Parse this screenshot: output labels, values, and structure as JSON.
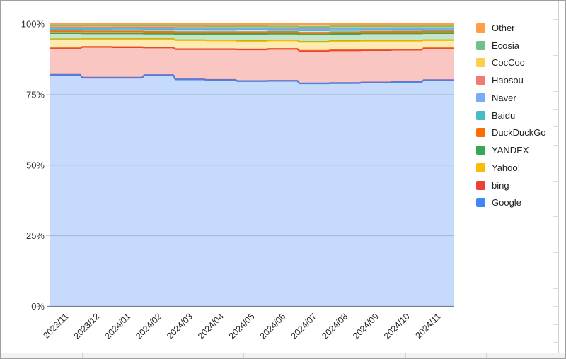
{
  "window": {
    "background_color": "#ffffff",
    "frame_border_color": "#9f9f9f"
  },
  "axes": {
    "y_ticks": [
      {
        "value": 0,
        "label": "0%"
      },
      {
        "value": 25,
        "label": "25%"
      },
      {
        "value": 50,
        "label": "50%"
      },
      {
        "value": 75,
        "label": "75%"
      },
      {
        "value": 100,
        "label": "100%"
      }
    ]
  },
  "chart_data": {
    "type": "area",
    "stacked": true,
    "percent_stacked": true,
    "title": "",
    "xlabel": "",
    "ylabel": "",
    "ylim": [
      0,
      100
    ],
    "grid": true,
    "legend_position": "right",
    "area_opacity": 0.3,
    "x": [
      "2023/11",
      "2023/12",
      "2024/01",
      "2024/02",
      "2024/03",
      "2024/04",
      "2024/05",
      "2024/06",
      "2024/07",
      "2024/08",
      "2024/09",
      "2024/10",
      "2024/11"
    ],
    "series": [
      {
        "name": "Google",
        "color": "#4285F4",
        "values": [
          82.0,
          81.0,
          81.0,
          81.9,
          80.4,
          80.2,
          79.8,
          79.9,
          79.0,
          79.1,
          79.3,
          79.5,
          80.1
        ]
      },
      {
        "name": "bing",
        "color": "#EA4335",
        "values": [
          9.4,
          10.9,
          10.8,
          9.8,
          10.7,
          10.9,
          11.2,
          11.3,
          11.5,
          11.6,
          11.5,
          11.4,
          11.3
        ]
      },
      {
        "name": "Yahoo!",
        "color": "#FBBC04",
        "values": [
          3.2,
          2.8,
          2.9,
          3.0,
          3.2,
          3.1,
          3.0,
          3.0,
          3.2,
          3.3,
          3.3,
          3.2,
          2.9
        ]
      },
      {
        "name": "YANDEX",
        "color": "#34A853",
        "values": [
          2.2,
          2.0,
          2.0,
          1.9,
          2.2,
          2.3,
          2.5,
          2.4,
          2.6,
          2.5,
          2.6,
          2.6,
          2.5
        ]
      },
      {
        "name": "DuckDuckGo",
        "color": "#FF6D01",
        "values": [
          0.7,
          0.7,
          0.7,
          0.7,
          0.65,
          0.65,
          0.65,
          0.6,
          0.6,
          0.6,
          0.6,
          0.6,
          0.6
        ]
      },
      {
        "name": "Baidu",
        "color": "#46BDC6",
        "values": [
          0.8,
          0.9,
          0.95,
          0.9,
          0.85,
          0.8,
          0.9,
          0.7,
          0.9,
          0.8,
          0.75,
          0.7,
          0.5
        ]
      },
      {
        "name": "Naver",
        "color": "#7BAAF7",
        "values": [
          0.35,
          0.35,
          0.35,
          0.4,
          0.5,
          0.5,
          0.45,
          0.5,
          0.55,
          0.6,
          0.55,
          0.55,
          0.6
        ]
      },
      {
        "name": "Haosou",
        "color": "#F07B72",
        "values": [
          0.5,
          0.45,
          0.45,
          0.5,
          0.45,
          0.4,
          0.35,
          0.35,
          0.3,
          0.3,
          0.3,
          0.3,
          0.3
        ]
      },
      {
        "name": "CocCoc",
        "color": "#FCD04F",
        "values": [
          0.2,
          0.2,
          0.2,
          0.25,
          0.25,
          0.25,
          0.25,
          0.25,
          0.25,
          0.25,
          0.25,
          0.25,
          0.25
        ]
      },
      {
        "name": "Ecosia",
        "color": "#71C287",
        "values": [
          0.15,
          0.15,
          0.15,
          0.15,
          0.15,
          0.15,
          0.15,
          0.15,
          0.15,
          0.15,
          0.15,
          0.15,
          0.15
        ]
      },
      {
        "name": "Other",
        "color": "#FF9E45",
        "values": [
          0.5,
          0.55,
          0.5,
          0.5,
          0.65,
          0.75,
          0.75,
          0.85,
          0.95,
          0.8,
          0.7,
          0.75,
          0.8
        ]
      }
    ]
  },
  "style": {
    "gridline_color": "#cccccc",
    "baseline_color": "#808080",
    "axis_label_color": "#333333",
    "x_label_color": "#222222"
  }
}
